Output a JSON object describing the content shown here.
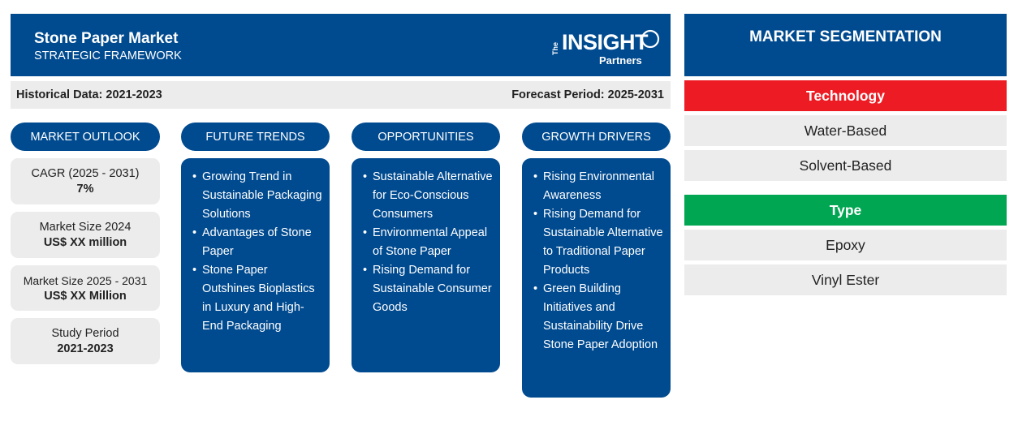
{
  "header": {
    "title": "Stone Paper Market",
    "subtitle": "STRATEGIC FRAMEWORK",
    "logo": {
      "the": "The",
      "insight": "INSIGHT",
      "partners": "Partners"
    }
  },
  "info": {
    "historical": "Historical Data: 2021-2023",
    "forecast": "Forecast Period: 2025-2031"
  },
  "sections": {
    "market_outlook": "MARKET OUTLOOK",
    "future_trends": "FUTURE TRENDS",
    "opportunities": "OPPORTUNITIES",
    "growth_drivers": "GROWTH DRIVERS"
  },
  "outlook": [
    {
      "label": "CAGR (2025 - 2031)",
      "value": "7%"
    },
    {
      "label": "Market Size 2024",
      "value": "US$ XX million"
    },
    {
      "label": "Market Size 2025 - 2031",
      "value": "US$ XX Million"
    },
    {
      "label": "Study Period",
      "value": "2021-2023"
    }
  ],
  "future_trends": [
    "Growing Trend in Sustainable Packaging Solutions",
    "Advantages of Stone Paper",
    "Stone Paper Outshines Bioplastics in Luxury and High-End Packaging"
  ],
  "opportunities": [
    "Sustainable Alternative for Eco-Conscious Consumers",
    "Environmental Appeal of Stone Paper",
    "Rising Demand for Sustainable Consumer Goods"
  ],
  "growth_drivers": [
    "Rising Environmental Awareness",
    "Rising Demand for Sustainable Alternative to Traditional Paper Products",
    "Green Building Initiatives and Sustainability Drive Stone Paper Adoption"
  ],
  "segmentation": {
    "title": "MARKET SEGMENTATION",
    "technology": {
      "label": "Technology",
      "color": "#ed1c24",
      "items": [
        "Water-Based",
        "Solvent-Based"
      ]
    },
    "type": {
      "label": "Type",
      "color": "#00a651",
      "items": [
        "Epoxy",
        "Vinyl Ester"
      ]
    }
  },
  "colors": {
    "primary": "#004a8f",
    "panel": "#ececec"
  }
}
